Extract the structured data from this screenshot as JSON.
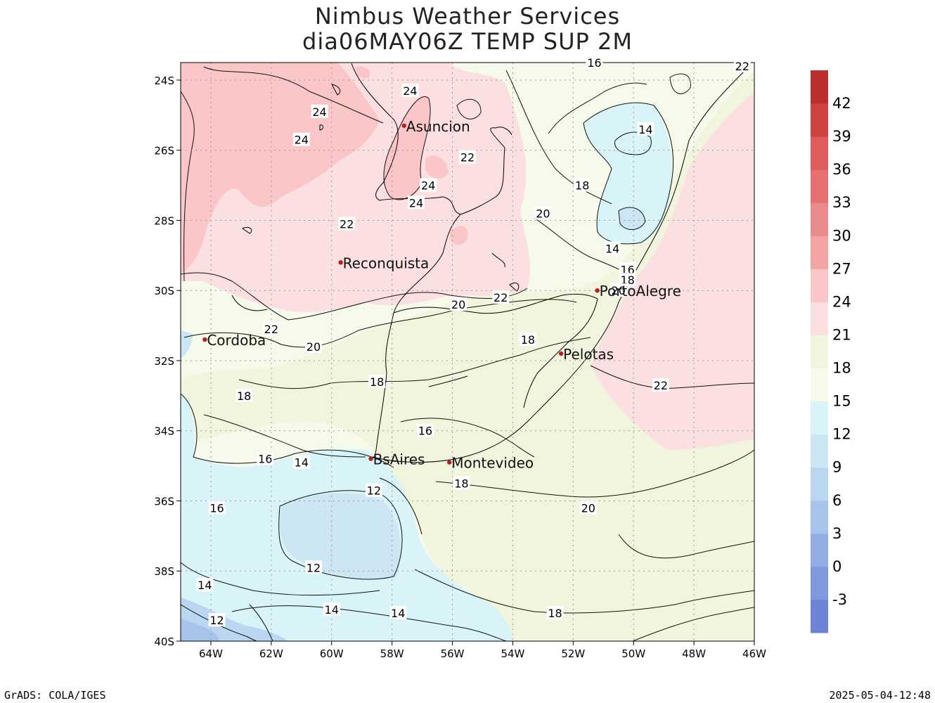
{
  "title": {
    "line1": "Nimbus Weather Services",
    "line2": "dia06MAY06Z TEMP SUP 2M"
  },
  "footer": {
    "left": "GrADS: COLA/IGES",
    "right": "2025-05-04-12:48"
  },
  "map": {
    "lon_range": [
      -65,
      -46
    ],
    "lat_range": [
      -40,
      -23.5
    ],
    "lon_ticks": [
      {
        "value": -64,
        "label": "64W"
      },
      {
        "value": -62,
        "label": "62W"
      },
      {
        "value": -60,
        "label": "60W"
      },
      {
        "value": -58,
        "label": "58W"
      },
      {
        "value": -56,
        "label": "56W"
      },
      {
        "value": -54,
        "label": "54W"
      },
      {
        "value": -52,
        "label": "52W"
      },
      {
        "value": -50,
        "label": "50W"
      },
      {
        "value": -48,
        "label": "48W"
      },
      {
        "value": -46,
        "label": "46W"
      }
    ],
    "lat_ticks": [
      {
        "value": -24,
        "label": "24S"
      },
      {
        "value": -26,
        "label": "26S"
      },
      {
        "value": -28,
        "label": "28S"
      },
      {
        "value": -30,
        "label": "30S"
      },
      {
        "value": -32,
        "label": "32S"
      },
      {
        "value": -34,
        "label": "34S"
      },
      {
        "value": -36,
        "label": "36S"
      },
      {
        "value": -38,
        "label": "38S"
      },
      {
        "value": -40,
        "label": "40S"
      }
    ],
    "cities": [
      {
        "name": "Asuncion",
        "lon": -57.6,
        "lat": -25.3
      },
      {
        "name": "Reconquista",
        "lon": -59.7,
        "lat": -29.2
      },
      {
        "name": "PortoAlegre",
        "lon": -51.2,
        "lat": -30.0
      },
      {
        "name": "Cordoba",
        "lon": -64.2,
        "lat": -31.4
      },
      {
        "name": "Pelotas",
        "lon": -52.4,
        "lat": -31.8
      },
      {
        "name": "BsAires",
        "lon": -58.7,
        "lat": -34.8
      },
      {
        "name": "Montevideo",
        "lon": -56.1,
        "lat": -34.9
      }
    ],
    "contour_labels": [
      {
        "text": "24",
        "lon": -57.4,
        "lat": -24.3
      },
      {
        "text": "24",
        "lon": -60.4,
        "lat": -24.9
      },
      {
        "text": "24",
        "lon": -61.0,
        "lat": -25.7
      },
      {
        "text": "22",
        "lon": -55.5,
        "lat": -26.2
      },
      {
        "text": "24",
        "lon": -56.8,
        "lat": -27.0
      },
      {
        "text": "24",
        "lon": -57.2,
        "lat": -27.5
      },
      {
        "text": "22",
        "lon": -59.5,
        "lat": -28.1
      },
      {
        "text": "20",
        "lon": -53.0,
        "lat": -27.8
      },
      {
        "text": "18",
        "lon": -51.7,
        "lat": -27.0
      },
      {
        "text": "16",
        "lon": -51.3,
        "lat": -23.5
      },
      {
        "text": "14",
        "lon": -49.6,
        "lat": -25.4
      },
      {
        "text": "14",
        "lon": -50.7,
        "lat": -28.8
      },
      {
        "text": "16",
        "lon": -50.2,
        "lat": -29.4
      },
      {
        "text": "18",
        "lon": -50.2,
        "lat": -29.7
      },
      {
        "text": "20",
        "lon": -50.5,
        "lat": -30.0
      },
      {
        "text": "22",
        "lon": -46.4,
        "lat": -23.6
      },
      {
        "text": "22",
        "lon": -54.4,
        "lat": -30.2
      },
      {
        "text": "20",
        "lon": -55.8,
        "lat": -30.4
      },
      {
        "text": "22",
        "lon": -62.0,
        "lat": -31.1
      },
      {
        "text": "20",
        "lon": -60.6,
        "lat": -31.6
      },
      {
        "text": "18",
        "lon": -53.5,
        "lat": -31.4
      },
      {
        "text": "18",
        "lon": -58.5,
        "lat": -32.6
      },
      {
        "text": "18",
        "lon": -62.9,
        "lat": -33.0
      },
      {
        "text": "22",
        "lon": -49.1,
        "lat": -32.7
      },
      {
        "text": "16",
        "lon": -56.9,
        "lat": -34.0
      },
      {
        "text": "16",
        "lon": -62.2,
        "lat": -34.8
      },
      {
        "text": "14",
        "lon": -61.0,
        "lat": -34.9
      },
      {
        "text": "18",
        "lon": -55.7,
        "lat": -35.5
      },
      {
        "text": "12",
        "lon": -58.6,
        "lat": -35.7
      },
      {
        "text": "20",
        "lon": -51.5,
        "lat": -36.2
      },
      {
        "text": "16",
        "lon": -63.8,
        "lat": -36.2
      },
      {
        "text": "12",
        "lon": -60.6,
        "lat": -37.9
      },
      {
        "text": "14",
        "lon": -64.2,
        "lat": -38.4
      },
      {
        "text": "14",
        "lon": -60.0,
        "lat": -39.1
      },
      {
        "text": "14",
        "lon": -57.8,
        "lat": -39.2
      },
      {
        "text": "18",
        "lon": -52.6,
        "lat": -39.2
      },
      {
        "text": "12",
        "lon": -63.8,
        "lat": -39.4
      }
    ]
  },
  "colorbar": {
    "levels": [
      "-3",
      "0",
      "3",
      "6",
      "9",
      "12",
      "15",
      "18",
      "21",
      "24",
      "27",
      "30",
      "33",
      "36",
      "39",
      "42"
    ],
    "colors": [
      "#6c83d6",
      "#7f98de",
      "#93ade4",
      "#a7c3ea",
      "#bbd6f0",
      "#cde6f4",
      "#d8f4f9",
      "#f6faeb",
      "#f2f5de",
      "#fbdfe1",
      "#fac6c8",
      "#f5a4a6",
      "#e88b8d",
      "#e57071",
      "#e05c5c",
      "#cf4240",
      "#bb2f2d"
    ]
  }
}
